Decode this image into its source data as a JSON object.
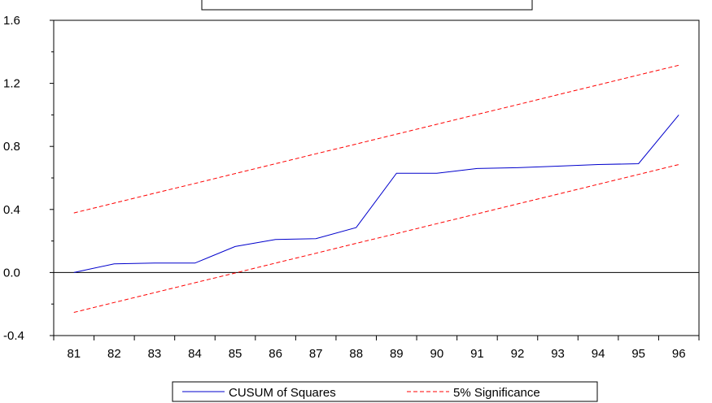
{
  "chart_data": {
    "type": "line",
    "title": "",
    "xlabel": "",
    "ylabel": "",
    "x": [
      "81",
      "82",
      "83",
      "84",
      "85",
      "86",
      "87",
      "88",
      "89",
      "90",
      "91",
      "92",
      "93",
      "94",
      "95",
      "96"
    ],
    "ylim": [
      -0.4,
      1.6
    ],
    "y_ticks": [
      "1.6",
      "1.2",
      "0.8",
      "0.4",
      "0.0",
      "-0.4"
    ],
    "zero_line": true,
    "grid": false,
    "legend_position": "bottom",
    "series": [
      {
        "name": "CUSUM of Squares",
        "color": "#0000cc",
        "style": "solid",
        "values": [
          0.0,
          0.055,
          0.06,
          0.06,
          0.165,
          0.21,
          0.215,
          0.285,
          0.63,
          0.63,
          0.66,
          0.665,
          0.675,
          0.685,
          0.69,
          1.0
        ]
      },
      {
        "name": "5% Significance",
        "color": "#ff0000",
        "style": "dashed",
        "values": [
          0.378,
          0.44,
          0.503,
          0.565,
          0.628,
          0.69,
          0.753,
          0.815,
          0.878,
          0.94,
          1.003,
          1.065,
          1.128,
          1.19,
          1.253,
          1.315
        ]
      },
      {
        "name": "5% Significance",
        "color": "#ff0000",
        "style": "dashed",
        "values": [
          -0.253,
          -0.19,
          -0.128,
          -0.065,
          -0.003,
          0.06,
          0.122,
          0.185,
          0.247,
          0.31,
          0.372,
          0.435,
          0.497,
          0.56,
          0.622,
          0.685
        ]
      }
    ]
  }
}
